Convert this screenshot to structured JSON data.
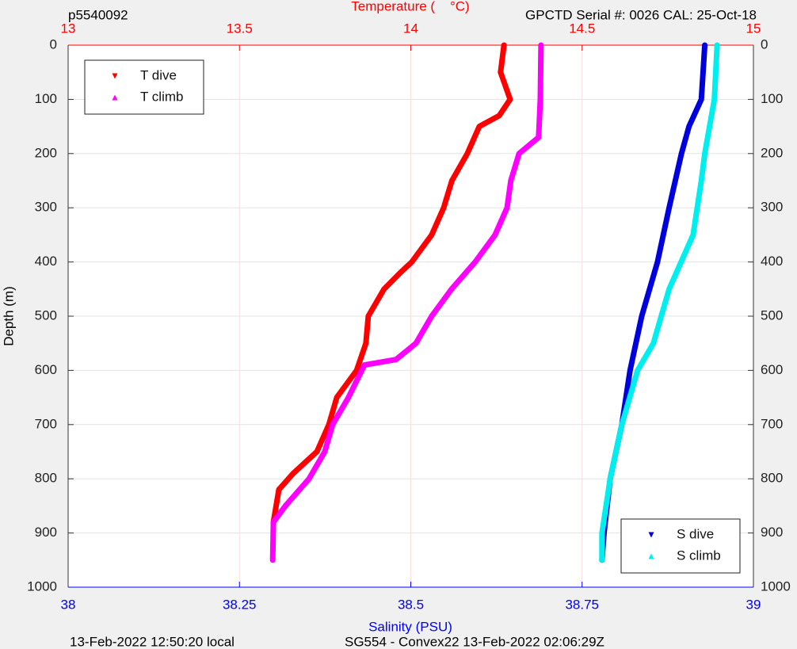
{
  "chart_data": {
    "type": "line",
    "title_left": "p5540092",
    "title_right": "GPCTD Serial #: 0026 CAL: 25-Oct-18",
    "x2label": "Temperature (    °C)",
    "xlabel": "Salinity (PSU)",
    "ylabel": "Depth (m)",
    "footer_left": "13-Feb-2022 12:50:20 local",
    "footer_right": "SG554 - Convex22 13-Feb-2022 02:06:29Z",
    "xlim": [
      38,
      39
    ],
    "xticks": [
      38,
      38.25,
      38.5,
      38.75,
      39
    ],
    "x_color": "#0000ff",
    "x2lim": [
      13,
      15
    ],
    "x2ticks": [
      13,
      13.5,
      14,
      14.5,
      15
    ],
    "x2_color": "#ff0000",
    "ylim": [
      0,
      1000
    ],
    "yticks": [
      0,
      100,
      200,
      300,
      400,
      500,
      600,
      700,
      800,
      900,
      1000
    ],
    "y_reversed": true,
    "grid": true,
    "series": [
      {
        "name": "T dive",
        "color": "#ff0000",
        "axis": "x2",
        "marker": "triangle-down",
        "legend_location": "upper left",
        "x": [
          14.272,
          14.262,
          14.29,
          14.258,
          14.2,
          14.165,
          14.12,
          14.096,
          14.061,
          14.003,
          13.969,
          13.922,
          13.876,
          13.869,
          13.842,
          13.784,
          13.761,
          13.726,
          13.657,
          13.615,
          13.599
        ],
        "values": [
          0,
          50,
          100,
          130,
          150,
          200,
          250,
          300,
          350,
          400,
          420,
          450,
          500,
          550,
          600,
          650,
          700,
          750,
          790,
          820,
          880
        ]
      },
      {
        "name": "T climb",
        "color": "#ff00ff",
        "axis": "x2",
        "marker": "triangle-up",
        "legend_location": "upper left",
        "x": [
          14.38,
          14.378,
          14.373,
          14.316,
          14.292,
          14.281,
          14.246,
          14.188,
          14.119,
          14.061,
          14.015,
          13.957,
          13.865,
          13.818,
          13.772,
          13.749,
          13.703,
          13.634,
          13.599,
          13.597
        ],
        "values": [
          0,
          100,
          170,
          200,
          250,
          300,
          350,
          400,
          450,
          500,
          550,
          580,
          590,
          650,
          700,
          750,
          800,
          850,
          880,
          950
        ]
      },
      {
        "name": "S dive",
        "color": "#0000dd",
        "axis": "x",
        "marker": "triangle-down",
        "legend_location": "lower right",
        "x": [
          38.929,
          38.924,
          38.906,
          38.895,
          38.877,
          38.86,
          38.837,
          38.82,
          38.808,
          38.791,
          38.782,
          38.779
        ],
        "values": [
          0,
          100,
          150,
          200,
          300,
          400,
          500,
          600,
          700,
          800,
          900,
          950
        ]
      },
      {
        "name": "S climb",
        "color": "#00eeee",
        "axis": "x",
        "marker": "triangle-up",
        "legend_location": "lower right",
        "x": [
          38.947,
          38.943,
          38.929,
          38.924,
          38.912,
          38.877,
          38.854,
          38.831,
          38.808,
          38.791,
          38.779,
          38.779
        ],
        "values": [
          0,
          100,
          200,
          250,
          350,
          450,
          550,
          600,
          700,
          800,
          900,
          950
        ]
      }
    ]
  }
}
